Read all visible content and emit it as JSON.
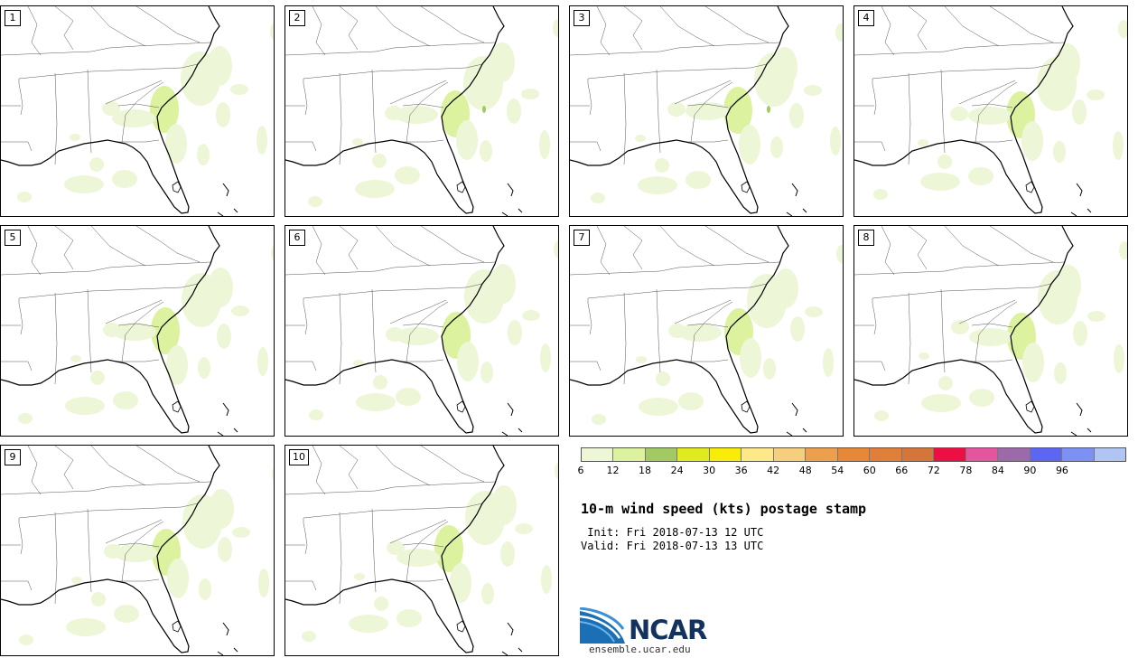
{
  "members": [
    "1",
    "2",
    "3",
    "4",
    "5",
    "6",
    "7",
    "8",
    "9",
    "10"
  ],
  "colorbar": {
    "colors": [
      "#eef6d8",
      "#dcf29e",
      "#a2c962",
      "#dfeb1e",
      "#f9ec0a",
      "#fde98a",
      "#f5cf7d",
      "#eca04d",
      "#e68838",
      "#df7f3a",
      "#d4763a",
      "#ec0f44",
      "#e455a0",
      "#9c6aa8",
      "#5c66f2",
      "#7d91f3",
      "#b1c5f3"
    ],
    "ticks": [
      "6",
      "12",
      "18",
      "24",
      "30",
      "36",
      "42",
      "48",
      "54",
      "60",
      "66",
      "72",
      "78",
      "84",
      "90",
      "96"
    ]
  },
  "title": "10-m wind speed (kts) postage stamp",
  "init": " Init: Fri 2018-07-13 12 UTC",
  "valid": "Valid: Fri 2018-07-13 13 UTC",
  "logo": {
    "text": "NCAR",
    "url": "ensemble.ucar.edu",
    "color": "#13335e"
  },
  "wind_colors": {
    "light": "#eef6d8",
    "medium": "#dcf29e",
    "darker": "#a2c962"
  }
}
